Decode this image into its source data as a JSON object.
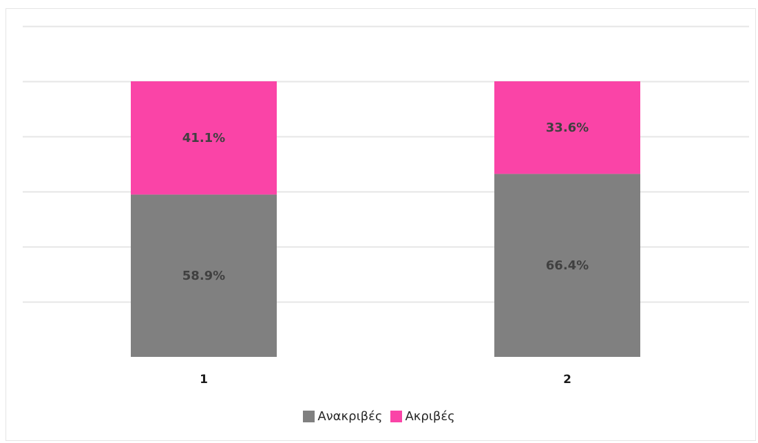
{
  "chart_data": {
    "type": "bar",
    "stacked": true,
    "percent": true,
    "categories": [
      "1",
      "2"
    ],
    "series": [
      {
        "name": "Ανακριβές",
        "color": "#808080",
        "values": [
          58.9,
          66.4
        ],
        "labels": [
          "58.9%",
          "66.4%"
        ]
      },
      {
        "name": "Ακριβές",
        "color": "#fa44a7",
        "values": [
          41.1,
          33.6
        ],
        "labels": [
          "41.1%",
          "33.6%"
        ]
      }
    ],
    "ylim": [
      0,
      120
    ],
    "grid": true,
    "legend_position": "bottom"
  }
}
